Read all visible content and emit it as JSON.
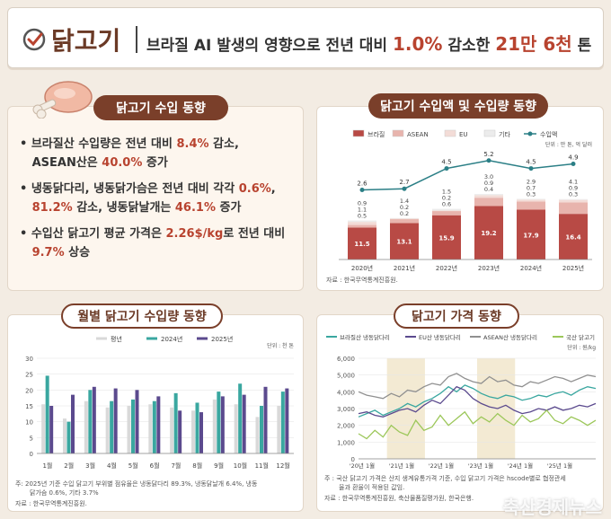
{
  "header": {
    "title": "닭고기",
    "headline_pre": "브라질 AI 발생의 영향으로 전년 대비 ",
    "headline_hl1": "1.0%",
    "headline_mid": " 감소한 ",
    "headline_hl2": "21만 6천",
    "headline_post": " 톤",
    "colors": {
      "accent": "#b8432f",
      "brown": "#7a3f2a"
    }
  },
  "import_trend": {
    "title": "닭고기 수입 동향",
    "bullets": [
      {
        "pre": "브라질산 수입량은 전년 대비 ",
        "v1": "8.4%",
        "mid": " 감소,",
        "line2_pre": "ASEAN산은 ",
        "v2": "40.0%",
        "post": " 증가"
      },
      {
        "pre": "냉동닭다리, 냉동닭가슴은 전년 대비 각각 ",
        "v1": "0.6%",
        "mid": ",",
        "line2_pre": "",
        "v2": "81.2%",
        "post2": " 감소, 냉동닭날개는 ",
        "v3": "46.1%",
        "post": " 증가"
      },
      {
        "pre": "수입산 닭고기 평균 가격은 ",
        "v1": "2.26$/kg",
        "mid": "로 전년 대비",
        "line2_pre": "",
        "v2": "9.7%",
        "post": " 상승"
      }
    ]
  },
  "chart_data": [
    {
      "type": "bar",
      "title": "닭고기 수입액 및 수입량 동향",
      "unit": "단위 : 만 톤, 억 달러",
      "categories": [
        "2020년",
        "2021년",
        "2022년",
        "2023년",
        "2024년",
        "2025년"
      ],
      "series": [
        {
          "name": "브라질",
          "color": "#b84a45",
          "values": [
            11.5,
            13.1,
            15.9,
            19.2,
            17.9,
            16.4
          ]
        },
        {
          "name": "ASEAN",
          "color": "#e8b4ad",
          "values": [
            0.9,
            1.4,
            1.5,
            3.0,
            2.9,
            4.1
          ]
        },
        {
          "name": "EU",
          "color": "#f3dcd7",
          "values": [
            1.1,
            0.2,
            0.2,
            0.9,
            0.7,
            0.9
          ]
        },
        {
          "name": "기타",
          "color": "#ececec",
          "values": [
            0.5,
            0.2,
            0.6,
            0.4,
            0.3,
            0.3
          ]
        }
      ],
      "line": {
        "name": "수입액",
        "color": "#2b7f86",
        "values": [
          2.6,
          2.7,
          4.5,
          5.2,
          4.5,
          4.9
        ]
      },
      "source": "자료 : 한국무역통계진흥원."
    },
    {
      "type": "bar",
      "title": "월별 닭고기 수입량 동향",
      "unit": "단위 : 천 톤",
      "categories": [
        "1월",
        "2월",
        "3월",
        "4월",
        "5월",
        "6월",
        "7월",
        "8월",
        "9월",
        "10월",
        "11월",
        "12월"
      ],
      "ylim": [
        0,
        30
      ],
      "yticks": [
        0,
        5,
        10,
        15,
        20,
        25,
        30
      ],
      "series": [
        {
          "name": "평년",
          "color": "#d9d9d9",
          "values": [
            15.5,
            11.0,
            16.5,
            14.5,
            15.0,
            15.5,
            14.5,
            13.5,
            17.0,
            15.5,
            11.5,
            15.0
          ]
        },
        {
          "name": "2024년",
          "color": "#3aa7a0",
          "values": [
            24.5,
            10.0,
            20.0,
            16.5,
            17.0,
            16.5,
            19.0,
            16.0,
            19.5,
            22.0,
            15.0,
            19.5
          ]
        },
        {
          "name": "2025년",
          "color": "#5b4a8e",
          "values": [
            15.0,
            18.5,
            21.0,
            20.5,
            20.0,
            18.0,
            13.5,
            13.0,
            18.0,
            18.5,
            21.0,
            20.5
          ]
        }
      ],
      "note": [
        "주: 2025년 기준 수입 닭고기 부위별 점유율은 냉동닭다리 89.3%, 냉동닭날개 6.4%, 냉동",
        "닭가슴 0.6%, 기타 3.7%"
      ],
      "source": "자료 : 한국무역통계진흥원."
    },
    {
      "type": "line",
      "title": "닭고기 가격 동향",
      "unit": "단위 : 원/kg",
      "ylim": [
        0,
        6000
      ],
      "yticks": [
        "0",
        "1,000",
        "2,000",
        "3,000",
        "4,000",
        "5,000",
        "6,000"
      ],
      "xticks": [
        "'20년 1월",
        "'21년 1월",
        "'22년 1월",
        "'23년 1월",
        "'24년 1월",
        "'25년 1월"
      ],
      "series": [
        {
          "name": "브라질산 냉동닭다리",
          "color": "#3aa7a0",
          "values": [
            2500,
            2700,
            2900,
            2600,
            2800,
            3000,
            3300,
            3100,
            3400,
            3600,
            3900,
            4300,
            4000,
            4400,
            4200,
            3900,
            3700,
            3600,
            3800,
            3700,
            3500,
            3600,
            3800,
            3700,
            3900,
            4000,
            3800,
            4100,
            4300,
            4200
          ]
        },
        {
          "name": "EU산 냉동닭다리",
          "color": "#5b4a8e",
          "values": [
            2700,
            2800,
            2600,
            2500,
            2700,
            2900,
            3000,
            2800,
            3200,
            3500,
            3300,
            3800,
            4300,
            4100,
            3600,
            3300,
            3100,
            3000,
            3200,
            2900,
            2700,
            2800,
            3000,
            2900,
            3100,
            2900,
            3000,
            3200,
            3100,
            3300
          ]
        },
        {
          "name": "ASEAN산 냉동닭다리",
          "color": "#909090",
          "values": [
            4000,
            3800,
            3700,
            3600,
            3900,
            3700,
            4100,
            4000,
            4300,
            4500,
            4400,
            4900,
            5100,
            4800,
            4600,
            4500,
            4900,
            4600,
            4700,
            4400,
            4300,
            4600,
            4500,
            4700,
            4900,
            4800,
            4600,
            4800,
            5000,
            4900
          ]
        },
        {
          "name": "국산 닭고기",
          "color": "#9cc75a",
          "values": [
            1500,
            1200,
            1700,
            1300,
            2000,
            1600,
            1400,
            2300,
            1700,
            1900,
            2600,
            2000,
            2400,
            2800,
            2100,
            2500,
            2200,
            2700,
            2300,
            2000,
            2600,
            2200,
            2400,
            2900,
            2300,
            2100,
            2500,
            2300,
            2000,
            2300
          ]
        }
      ],
      "note": [
        "주 : 국산 닭고기 가격은 산지 생계유통가격 기준, 수입 닭고기 가격은 hscode별로 협정관세",
        "율과 환율이 적용된 값임."
      ],
      "source": "자료 : 한국무역통계진흥원, 축산물품질평가원, 한국은행."
    }
  ],
  "watermark": "축산경제뉴스"
}
